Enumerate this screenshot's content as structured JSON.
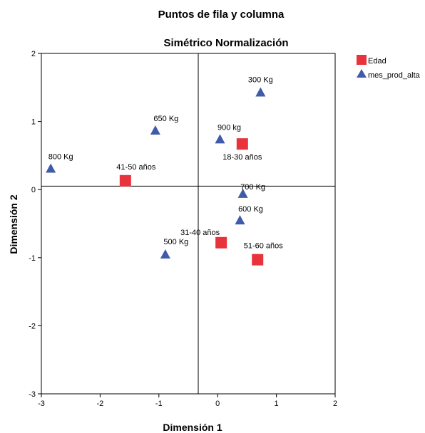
{
  "chart_data": {
    "type": "scatter",
    "title": "Puntos de fila y columna",
    "subtitle": "Simétrico Normalización",
    "xlabel": "Dimensión 1",
    "ylabel": "Dimensión 2",
    "xlim": [
      -3,
      2
    ],
    "ylim": [
      -3,
      2
    ],
    "xticks": [
      -3,
      -2,
      -1,
      0,
      1,
      2
    ],
    "yticks": [
      -3,
      -2,
      -1,
      0,
      1,
      2
    ],
    "reference_lines": {
      "x": -0.33,
      "y": 0.05
    },
    "grid": false,
    "legend_position": "top-right",
    "series": [
      {
        "name": "Edad",
        "marker": "square",
        "color": "#e8323c",
        "points": [
          {
            "x": 0.42,
            "y": 0.67,
            "label": "18-30 años"
          },
          {
            "x": 0.06,
            "y": -0.78,
            "label": "31-40 años"
          },
          {
            "x": -1.57,
            "y": 0.13,
            "label": "41-50 años"
          },
          {
            "x": 0.68,
            "y": -1.03,
            "label": "51-60 años"
          }
        ]
      },
      {
        "name": "mes_prod_alta",
        "marker": "triangle",
        "color": "#3f5ba9",
        "points": [
          {
            "x": 0.73,
            "y": 1.42,
            "label": "300 Kg"
          },
          {
            "x": -0.89,
            "y": -0.96,
            "label": "500 Kg"
          },
          {
            "x": 0.38,
            "y": -0.46,
            "label": "600 Kg"
          },
          {
            "x": -1.06,
            "y": 0.86,
            "label": "650 Kg"
          },
          {
            "x": 0.43,
            "y": -0.07,
            "label": "700 Kg"
          },
          {
            "x": -2.84,
            "y": 0.3,
            "label": "800 Kg"
          },
          {
            "x": 0.04,
            "y": 0.73,
            "label": "900 kg"
          }
        ]
      }
    ]
  }
}
